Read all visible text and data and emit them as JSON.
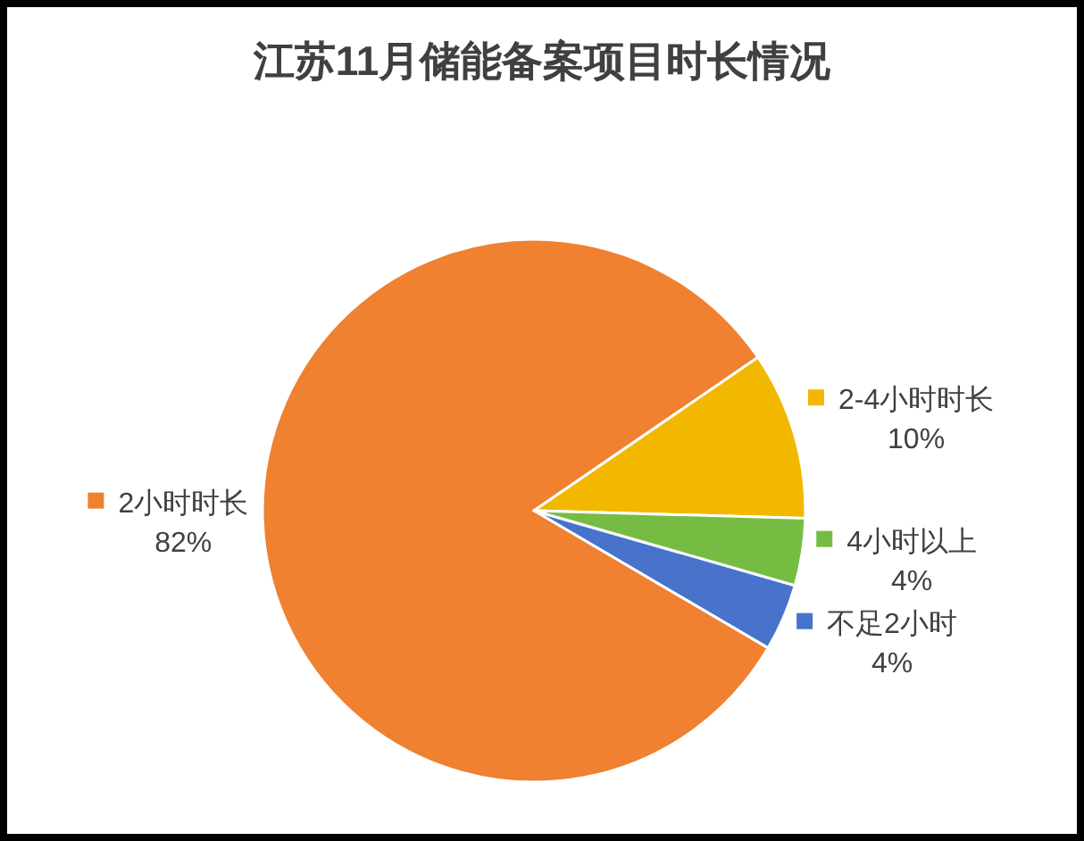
{
  "chart_data": {
    "type": "pie",
    "title": "江苏11月储能备案项目时长情况",
    "categories": [
      "不足2小时",
      "2小时时长",
      "2-4小时时长",
      "4小时以上"
    ],
    "values": [
      4,
      82,
      10,
      4
    ],
    "value_labels": [
      "4%",
      "82%",
      "10%",
      "4%"
    ],
    "colors": [
      "#4873cb",
      "#ef8131",
      "#f2b800",
      "#76bc43"
    ],
    "legend": "right"
  }
}
